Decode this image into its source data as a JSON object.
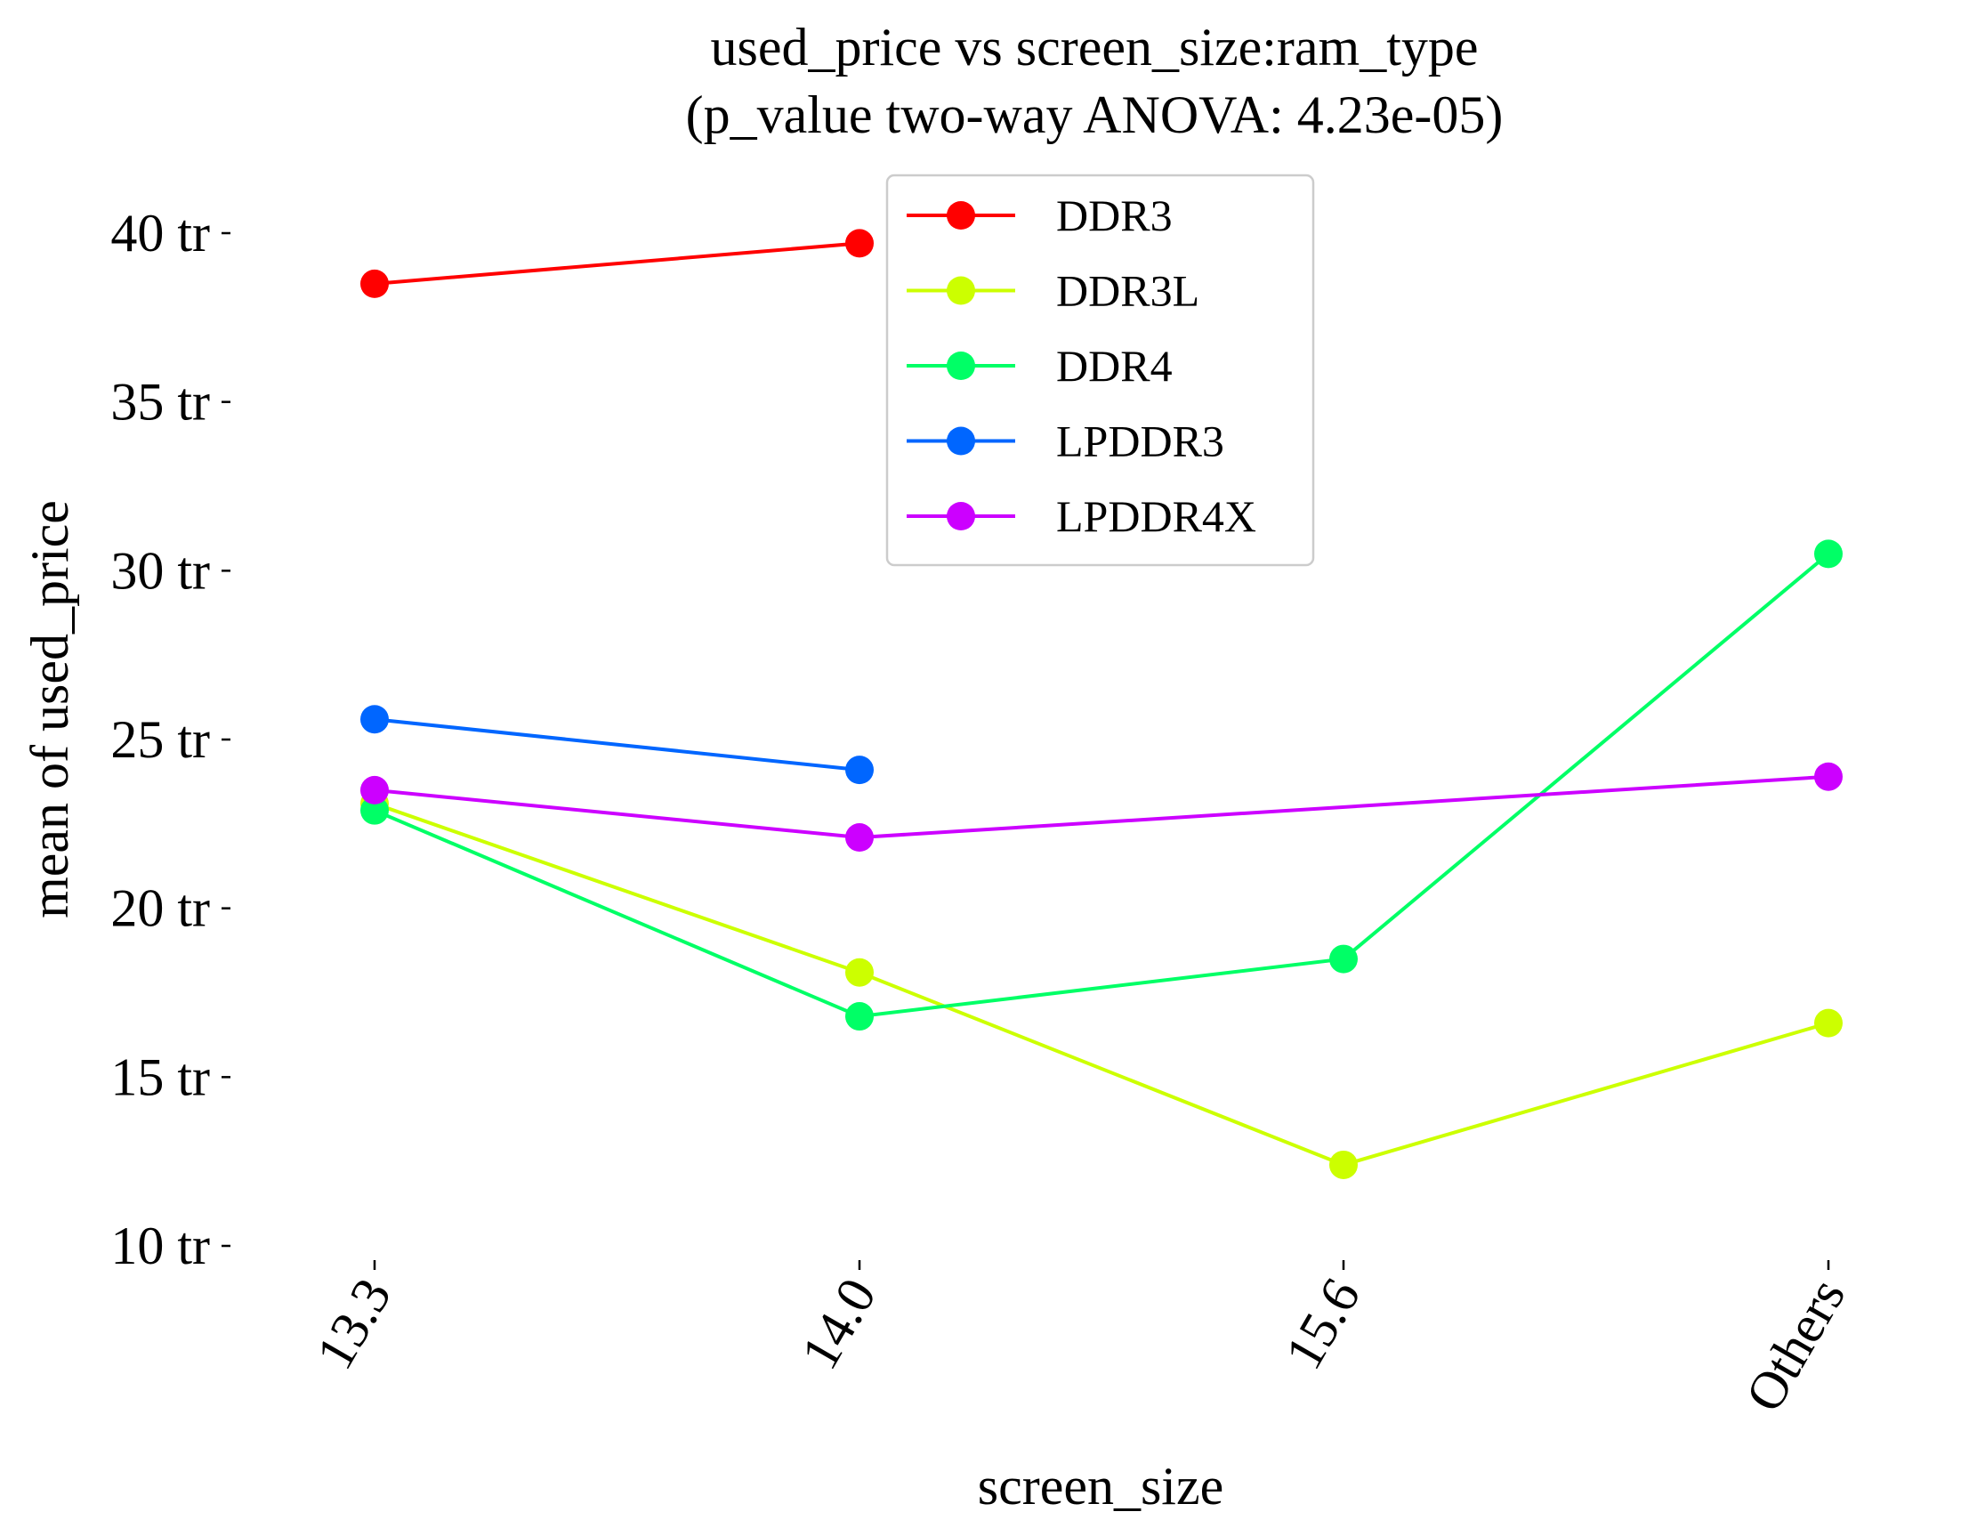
{
  "chart_data": {
    "type": "line",
    "title": "used_price vs screen_size:ram_type",
    "subtitle": "(p_value two-way ANOVA: 4.23e-05)",
    "xlabel": "screen_size",
    "ylabel": "mean of used_price",
    "categories": [
      "13.3",
      "14.0",
      "15.6",
      "Others"
    ],
    "ylim": [
      10,
      40
    ],
    "yticks": [
      10,
      15,
      20,
      25,
      30,
      35,
      40
    ],
    "ytick_labels": [
      "10 tr",
      "15 tr",
      "20 tr",
      "25 tr",
      "30 tr",
      "35 tr",
      "40 tr"
    ],
    "legend_position": "top-center",
    "grid": false,
    "series": [
      {
        "name": "DDR3",
        "color": "#ff0000",
        "values": [
          38.5,
          39.7,
          null,
          null
        ]
      },
      {
        "name": "DDR3L",
        "color": "#ccff00",
        "values": [
          23.1,
          18.1,
          12.4,
          16.6
        ]
      },
      {
        "name": "DDR4",
        "color": "#00ff66",
        "values": [
          22.9,
          16.8,
          18.5,
          30.5
        ]
      },
      {
        "name": "LPDDR3",
        "color": "#0066ff",
        "values": [
          25.6,
          24.1,
          null,
          null
        ]
      },
      {
        "name": "LPDDR4X",
        "color": "#cc00ff",
        "values": [
          23.5,
          22.1,
          null,
          23.9
        ]
      }
    ]
  }
}
